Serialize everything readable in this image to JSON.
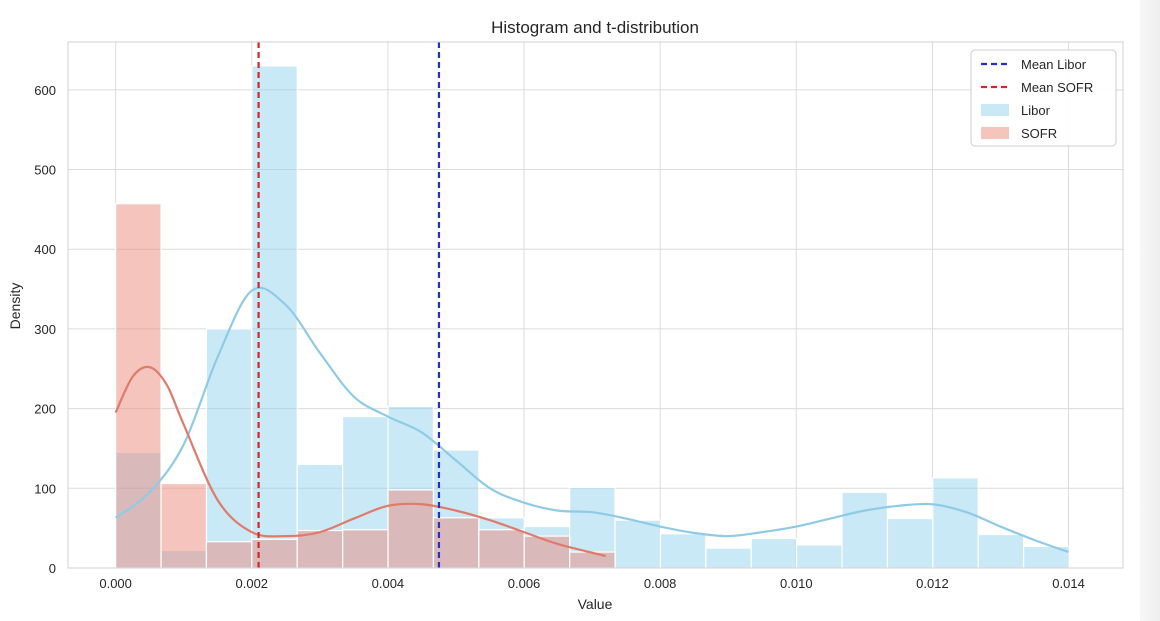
{
  "chart_data": {
    "type": "bar",
    "title": "Histogram and t-distribution",
    "xlabel": "Value",
    "ylabel": "Density",
    "xlim": [
      -0.0007,
      0.0148
    ],
    "ylim": [
      0,
      660
    ],
    "xticks": [
      0.0,
      0.002,
      0.004,
      0.006,
      0.008,
      0.01,
      0.012,
      0.014
    ],
    "xtick_labels": [
      "0.000",
      "0.002",
      "0.004",
      "0.006",
      "0.008",
      "0.010",
      "0.012",
      "0.014"
    ],
    "yticks": [
      0,
      100,
      200,
      300,
      400,
      500,
      600
    ],
    "ytick_labels": [
      "0",
      "100",
      "200",
      "300",
      "400",
      "500",
      "600"
    ],
    "grid": true,
    "legend_position": "top-right",
    "colors": {
      "libor": "#87ceeb",
      "sofr": "#e9897b",
      "mean_libor": "#1f2fd1",
      "mean_sofr": "#d62728"
    },
    "series": [
      {
        "name": "Libor",
        "bin_start": 0.0,
        "bin_width": 0.000667,
        "values": [
          145,
          22,
          300,
          630,
          130,
          190,
          203,
          148,
          63,
          52,
          101,
          60,
          43,
          25,
          37,
          29,
          95,
          62,
          113,
          42,
          27
        ],
        "kde_x": [
          0.0,
          0.0005,
          0.001,
          0.0015,
          0.002,
          0.0025,
          0.003,
          0.0035,
          0.004,
          0.0045,
          0.005,
          0.0055,
          0.006,
          0.0065,
          0.007,
          0.0075,
          0.008,
          0.0085,
          0.009,
          0.0095,
          0.01,
          0.0105,
          0.011,
          0.0115,
          0.012,
          0.0125,
          0.013,
          0.0135,
          0.014
        ],
        "kde_y": [
          63,
          95,
          155,
          265,
          348,
          330,
          270,
          215,
          190,
          170,
          135,
          100,
          82,
          72,
          70,
          62,
          52,
          44,
          40,
          45,
          52,
          62,
          72,
          78,
          80,
          70,
          52,
          35,
          20
        ]
      },
      {
        "name": "SOFR",
        "bin_start": 0.0,
        "bin_width": 0.000667,
        "values": [
          457,
          106,
          33,
          36,
          47,
          48,
          98,
          63,
          48,
          40,
          20
        ],
        "kde_x": [
          0.0,
          0.00025,
          0.0005,
          0.00075,
          0.001,
          0.0015,
          0.002,
          0.0025,
          0.003,
          0.0035,
          0.004,
          0.0045,
          0.005,
          0.0055,
          0.006,
          0.0065,
          0.0072
        ],
        "kde_y": [
          195,
          240,
          252,
          230,
          180,
          85,
          45,
          40,
          45,
          62,
          78,
          80,
          72,
          60,
          45,
          30,
          15
        ]
      }
    ],
    "vlines": [
      {
        "name": "Mean Libor",
        "x": 0.00475,
        "style": "dashed"
      },
      {
        "name": "Mean SOFR",
        "x": 0.0021,
        "style": "dashed"
      }
    ],
    "legend": [
      "Mean Libor",
      "Mean SOFR",
      "Libor",
      "SOFR"
    ]
  }
}
